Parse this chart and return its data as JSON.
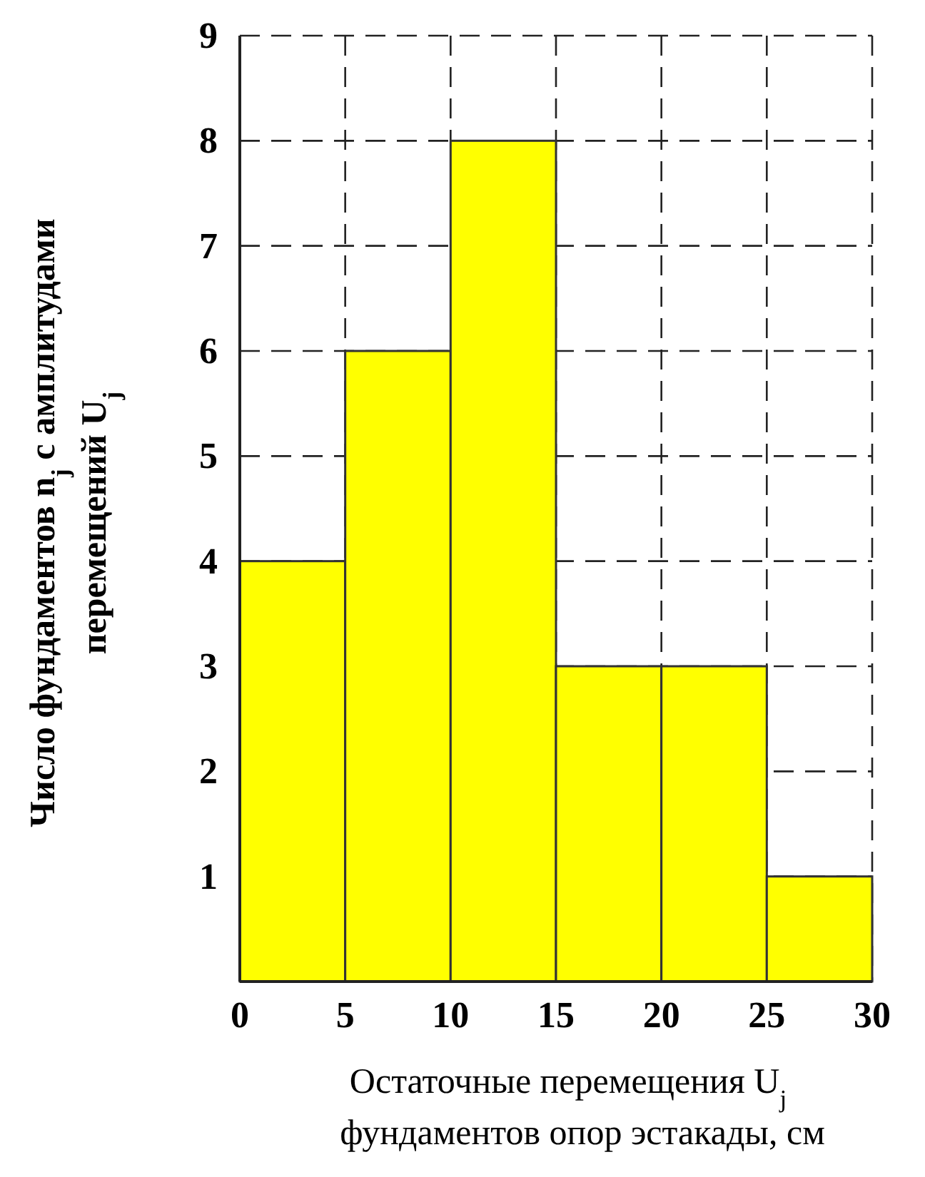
{
  "chart_data": {
    "type": "histogram",
    "xlabel": "Остаточные перемещения U$_{j}$\nфундаментов опор эстакады, см",
    "ylabel": "Число фундаментов n$_{j}$ с амплитудами\nперемещений U$_{j}$",
    "bins": [
      0,
      5,
      10,
      15,
      20,
      25,
      30
    ],
    "values": [
      4,
      6,
      8,
      3,
      3,
      1
    ],
    "color": "#ffff00",
    "xlim": [
      0,
      30
    ],
    "xticks": [
      0,
      5,
      10,
      15,
      20,
      25,
      30
    ],
    "ylim": [
      0,
      9
    ],
    "yticks": [
      1,
      2,
      3,
      4,
      5,
      6,
      7,
      8,
      9
    ],
    "grid": true
  }
}
